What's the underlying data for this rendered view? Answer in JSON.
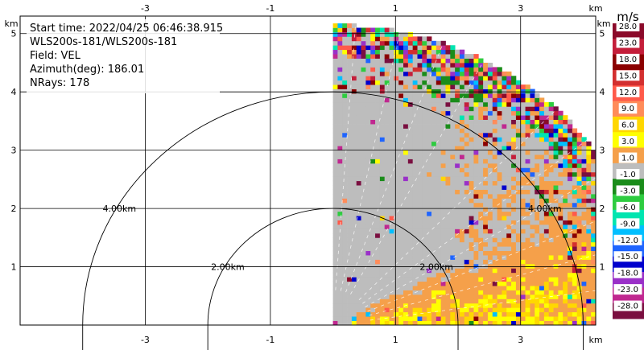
{
  "chart_data": {
    "type": "heatmap",
    "title": "",
    "field": "VEL",
    "info_lines": [
      "Start time: 2022/04/25 06:46:38.915",
      "WLS200s-181/WLS200s-181",
      "Field: VEL",
      "Azimuth(deg): 186.01",
      "NRays: 178"
    ],
    "axis_unit": "km",
    "x_ticks": [
      "-3",
      "-1",
      "1",
      "3"
    ],
    "x_tick_values": [
      -3,
      -1,
      1,
      3
    ],
    "y_ticks": [
      "1",
      "2",
      "3",
      "4",
      "5"
    ],
    "y_tick_values": [
      1,
      2,
      3,
      4,
      5
    ],
    "xlim": [
      -5.0,
      4.2
    ],
    "ylim": [
      0.0,
      5.3
    ],
    "grid": true,
    "range_rings": [
      {
        "radius": 2.0,
        "label": "2.00km"
      },
      {
        "radius": 4.0,
        "label": "4.00km"
      }
    ],
    "sector": {
      "azimuth_start_deg": 0,
      "azimuth_end_deg": 90,
      "max_range_km": 5.15
    },
    "colorbar": {
      "unit": "m/s",
      "tick_labels": [
        "28.0",
        "23.0",
        "18.0",
        "15.0",
        "12.0",
        "9.0",
        "6.0",
        "3.0",
        "1.0",
        "-1.0",
        "-3.0",
        "-6.0",
        "-9.0",
        "-12.0",
        "-15.0",
        "-18.0",
        "-23.0",
        "-28.0"
      ],
      "colors": [
        "#8b0a2a",
        "#c41e3a",
        "#8b0000",
        "#d32f2f",
        "#ff5a4a",
        "#ff8c5a",
        "#ffd700",
        "#ffff00",
        "#f5a04a",
        "#bdbdbd",
        "#1a8c1a",
        "#2ecc40",
        "#00e5b0",
        "#00bfff",
        "#1e64ff",
        "#0000cd",
        "#9a30c8",
        "#c02890",
        "#7a0f40"
      ]
    }
  }
}
